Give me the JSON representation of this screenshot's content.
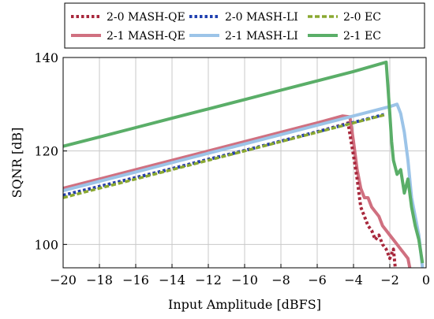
{
  "chart_data": {
    "type": "line",
    "xlabel": "Input Amplitude [dBFS]",
    "ylabel": "SQNR [dB]",
    "xlim": [
      -20,
      0
    ],
    "ylim": [
      95,
      140
    ],
    "xticks": [
      -20,
      -18,
      -16,
      -14,
      -12,
      -10,
      -8,
      -6,
      -4,
      -2,
      0
    ],
    "xtick_labels": [
      "−20",
      "−18",
      "−16",
      "−14",
      "−12",
      "−10",
      "−8",
      "−6",
      "−4",
      "−2",
      "0"
    ],
    "yticks": [
      100,
      120,
      140
    ],
    "ytick_labels": [
      "100",
      "120",
      "140"
    ],
    "grid": true,
    "legend_position": "top",
    "series": [
      {
        "name": "2-0 MASH-QE",
        "color": "#a8283c",
        "dash": "dotted",
        "x": [
          -20,
          -18,
          -16,
          -14,
          -12,
          -10,
          -8,
          -6,
          -4.6,
          -4.3,
          -4.0,
          -3.8,
          -3.6,
          -3.4,
          -3.2,
          -3.0,
          -2.8,
          -2.6,
          -2.4,
          -2.2,
          -2.0,
          -1.8,
          -1.7
        ],
        "y": [
          110.5,
          112.4,
          114.3,
          116.2,
          118.2,
          120.1,
          122.1,
          124.1,
          125.6,
          126.0,
          119,
          114,
          108,
          106,
          104,
          103,
          101,
          102,
          100,
          99,
          97,
          99,
          95
        ]
      },
      {
        "name": "2-0 MASH-LI",
        "color": "#2040b0",
        "dash": "dotted",
        "x": [
          -20,
          -18,
          -16,
          -14,
          -12,
          -10,
          -8,
          -6,
          -4,
          -2.5,
          -2.2
        ],
        "y": [
          110.5,
          112.4,
          114.3,
          116.2,
          118.2,
          120.1,
          122.1,
          124.1,
          126.1,
          127.6,
          127.9
        ]
      },
      {
        "name": "2-0 EC",
        "color": "#8aa830",
        "dash": "dashed",
        "x": [
          -20,
          -18,
          -16,
          -14,
          -12,
          -10,
          -8,
          -6,
          -4,
          -2.5,
          -2.2
        ],
        "y": [
          110.0,
          112.0,
          114.0,
          116.0,
          118.0,
          120.0,
          122.0,
          124.0,
          126.0,
          127.5,
          127.8
        ]
      },
      {
        "name": "2-1 MASH-QE",
        "color": "#d07080",
        "dash": "solid",
        "x": [
          -20,
          -18,
          -16,
          -14,
          -12,
          -10,
          -8,
          -6,
          -4.6,
          -4.2,
          -4.0,
          -3.8,
          -3.6,
          -3.4,
          -3.2,
          -3.0,
          -2.8,
          -2.6,
          -2.4,
          -2.2,
          -2.0,
          -1.8,
          -1.6,
          -1.4,
          -1.2,
          -1.0,
          -0.9
        ],
        "y": [
          112,
          114,
          116,
          118,
          120,
          122,
          124,
          126,
          127.5,
          127.3,
          122,
          116,
          112,
          110,
          110,
          108,
          107,
          106,
          104,
          103,
          102,
          101,
          100,
          99,
          98,
          97,
          95
        ]
      },
      {
        "name": "2-1 MASH-LI",
        "color": "#9cc4e8",
        "dash": "solid",
        "x": [
          -20,
          -18,
          -16,
          -14,
          -12,
          -10,
          -8,
          -6,
          -4,
          -2,
          -1.6,
          -1.4,
          -1.2,
          -1.0,
          -0.9,
          -0.8,
          -0.6,
          -0.4,
          -0.2
        ],
        "y": [
          111.5,
          113.5,
          115.5,
          117.5,
          119.5,
          121.5,
          123.5,
          125.5,
          127.5,
          129.5,
          130,
          128,
          124,
          118,
          114,
          110,
          106,
          102,
          95
        ]
      },
      {
        "name": "2-1 EC",
        "color": "#5aae68",
        "dash": "solid",
        "x": [
          -20,
          -18,
          -16,
          -14,
          -12,
          -10,
          -8,
          -6,
          -4,
          -2.2,
          -2.0,
          -1.9,
          -1.8,
          -1.6,
          -1.4,
          -1.2,
          -1.0,
          -0.8,
          -0.6,
          -0.4,
          -0.2
        ],
        "y": [
          121,
          123,
          125,
          127,
          129,
          131,
          133,
          135,
          137,
          139,
          128,
          122,
          118,
          115,
          116,
          111,
          114,
          108,
          104,
          101,
          96
        ]
      }
    ]
  }
}
